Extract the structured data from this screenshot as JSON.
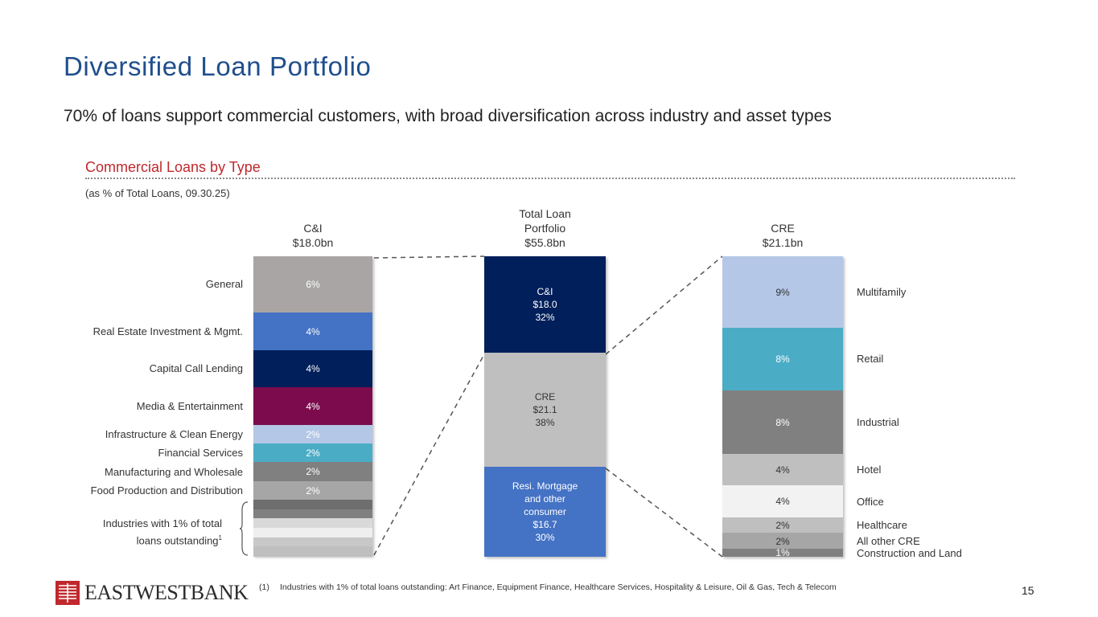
{
  "title": "Diversified Loan Portfolio",
  "subtitle": "70% of loans support commercial customers, with broad diversification across industry and asset types",
  "section_title": "Commercial Loans by Type",
  "as_of_note": "(as % of Total Loans, 09.30.25)",
  "footnote": {
    "marker": "(1)",
    "text": "Industries with 1% of total loans outstanding: Art Finance, Equipment Finance, Healthcare Services, Hospitality & Leisure, Oil & Gas, Tech & Telecom"
  },
  "page_number": "15",
  "logo": {
    "text": "EASTWESTBANK",
    "color": "#c0282d"
  },
  "bracket_label": {
    "line1": "Industries with 1% of total",
    "line2": "loans outstanding",
    "sup": "1"
  },
  "chart_data": [
    {
      "type": "stacked-bar",
      "name": "C&I",
      "header": {
        "line1": "C&I",
        "line2": "$18.0bn"
      },
      "segments": [
        {
          "label": "General",
          "value": 6,
          "text": "6%",
          "color": "#a9a5a5"
        },
        {
          "label": "Real Estate Investment & Mgmt.",
          "value": 4,
          "text": "4%",
          "color": "#4472c4"
        },
        {
          "label": "Capital Call Lending",
          "value": 4,
          "text": "4%",
          "color": "#001f5b"
        },
        {
          "label": "Media & Entertainment",
          "value": 4,
          "text": "4%",
          "color": "#7b0b4c"
        },
        {
          "label": "Infrastructure & Clean Energy",
          "value": 2,
          "text": "2%",
          "color": "#b4c7e7"
        },
        {
          "label": "Financial Services",
          "value": 2,
          "text": "2%",
          "color": "#4bacc6"
        },
        {
          "label": "Manufacturing and Wholesale",
          "value": 2,
          "text": "2%",
          "color": "#808080"
        },
        {
          "label": "Food Production and Distribution",
          "value": 2,
          "text": "2%",
          "color": "#a6a6a6"
        },
        {
          "label": "",
          "value": 1,
          "text": "",
          "color": "#6e6e6e"
        },
        {
          "label": "",
          "value": 1,
          "text": "",
          "color": "#808080"
        },
        {
          "label": "",
          "value": 1,
          "text": "",
          "color": "#d9d9d9"
        },
        {
          "label": "",
          "value": 1,
          "text": "",
          "color": "#efefef"
        },
        {
          "label": "",
          "value": 1,
          "text": "",
          "color": "#c8c8c8"
        },
        {
          "label": "",
          "value": 1,
          "text": "",
          "color": "#bfbfbf"
        }
      ]
    },
    {
      "type": "stacked-bar",
      "name": "Total Loan Portfolio",
      "header": {
        "line1": "Total Loan",
        "line2": "Portfolio",
        "line3": "$55.8bn"
      },
      "segments": [
        {
          "label": "C&I",
          "value": 32,
          "lines": [
            "C&I",
            "$18.0",
            "32%"
          ],
          "color": "#001f5b"
        },
        {
          "label": "CRE",
          "value": 38,
          "lines": [
            "CRE",
            "$21.1",
            "38%"
          ],
          "color": "#bfbfbf"
        },
        {
          "label": "Resi. Mortgage and other consumer",
          "value": 30,
          "lines": [
            "Resi. Mortgage",
            "and other",
            "consumer",
            "$16.7",
            "30%"
          ],
          "color": "#4472c4"
        }
      ]
    },
    {
      "type": "stacked-bar",
      "name": "CRE",
      "header": {
        "line1": "CRE",
        "line2": "$21.1bn"
      },
      "segments": [
        {
          "label": "Multifamily",
          "value": 9,
          "text": "9%",
          "color": "#b4c7e7"
        },
        {
          "label": "Retail",
          "value": 8,
          "text": "8%",
          "color": "#4bacc6"
        },
        {
          "label": "Industrial",
          "value": 8,
          "text": "8%",
          "color": "#808080"
        },
        {
          "label": "Hotel",
          "value": 4,
          "text": "4%",
          "color": "#bfbfbf"
        },
        {
          "label": "Office",
          "value": 4,
          "text": "4%",
          "color": "#f2f2f2"
        },
        {
          "label": "Healthcare",
          "value": 2,
          "text": "2%",
          "color": "#bfbfbf"
        },
        {
          "label": "All other CRE",
          "value": 2,
          "text": "2%",
          "color": "#a6a6a6"
        },
        {
          "label": "Construction and Land",
          "value": 1,
          "text": "1%",
          "color": "#808080"
        }
      ]
    }
  ]
}
